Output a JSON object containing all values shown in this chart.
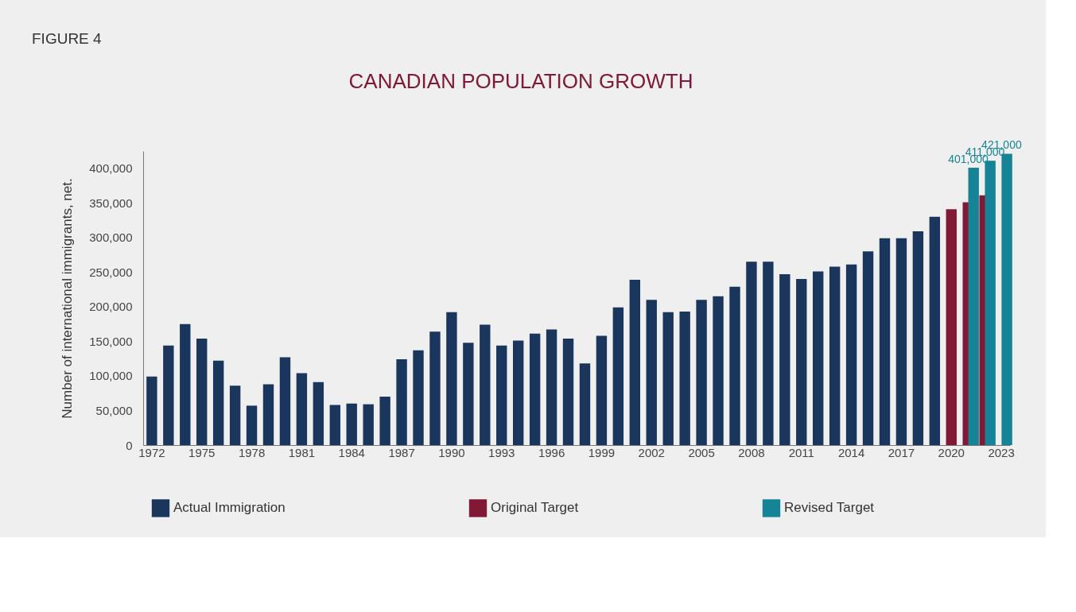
{
  "chart_data": {
    "type": "bar",
    "title": "CANADIAN POPULATION GROWTH",
    "ylabel": "Number of international immigrants, net.",
    "annotations": [
      "FIGURE 4"
    ],
    "categories": [
      "1972",
      null,
      null,
      "1975",
      null,
      null,
      "1978",
      null,
      null,
      "1981",
      null,
      null,
      "1984",
      null,
      null,
      "1987",
      null,
      null,
      "1990",
      null,
      null,
      "1993",
      null,
      null,
      "1996",
      null,
      null,
      "1999",
      null,
      null,
      "2002",
      null,
      null,
      "2005",
      null,
      null,
      "2008",
      null,
      null,
      "2011",
      null,
      null,
      "2014",
      null,
      null,
      "2017",
      null,
      null,
      "2020",
      null,
      null,
      "2023"
    ],
    "series": [
      {
        "name": "Actual Immigration",
        "color": "#1a365d",
        "values": [
          99000,
          144000,
          175000,
          154000,
          122000,
          86000,
          57000,
          88000,
          127000,
          104000,
          91000,
          58000,
          60000,
          59000,
          70000,
          124000,
          137000,
          164000,
          192000,
          148000,
          174000,
          144000,
          151000,
          161000,
          167000,
          154000,
          118000,
          158000,
          199000,
          239000,
          210000,
          192000,
          193000,
          210000,
          215000,
          229000,
          265000,
          265000,
          247000,
          240000,
          251000,
          258000,
          261000,
          280000,
          299000,
          299000,
          309000,
          330000,
          null,
          null,
          null,
          null
        ]
      },
      {
        "name": "Original Target",
        "color": "#801836",
        "values": [
          null,
          null,
          null,
          null,
          null,
          null,
          null,
          null,
          null,
          null,
          null,
          null,
          null,
          null,
          null,
          null,
          null,
          null,
          null,
          null,
          null,
          null,
          null,
          null,
          null,
          null,
          null,
          null,
          null,
          null,
          null,
          null,
          null,
          null,
          null,
          null,
          null,
          null,
          null,
          null,
          null,
          null,
          null,
          null,
          null,
          null,
          null,
          null,
          341000,
          351000,
          361000,
          null
        ]
      },
      {
        "name": "Revised Target",
        "color": "#148496",
        "values": [
          null,
          null,
          null,
          null,
          null,
          null,
          null,
          null,
          null,
          null,
          null,
          null,
          null,
          null,
          null,
          null,
          null,
          null,
          null,
          null,
          null,
          null,
          null,
          null,
          null,
          null,
          null,
          null,
          null,
          null,
          null,
          null,
          null,
          null,
          null,
          null,
          null,
          null,
          null,
          null,
          null,
          null,
          null,
          null,
          null,
          null,
          null,
          null,
          null,
          401000,
          411000,
          421000
        ],
        "value_labels": [
          null,
          null,
          null,
          null,
          null,
          null,
          null,
          null,
          null,
          null,
          null,
          null,
          null,
          null,
          null,
          null,
          null,
          null,
          null,
          null,
          null,
          null,
          null,
          null,
          null,
          null,
          null,
          null,
          null,
          null,
          null,
          null,
          null,
          null,
          null,
          null,
          null,
          null,
          null,
          null,
          null,
          null,
          null,
          null,
          null,
          null,
          null,
          null,
          null,
          "401,000",
          "411,000",
          "421,000"
        ]
      }
    ],
    "ylim": [
      0,
      425000
    ],
    "yticks": [
      0,
      {
        "value": 50000,
        "label": "50,000"
      },
      {
        "value": 100000,
        "label": "100,000"
      },
      {
        "value": 150000,
        "label": "150,000"
      },
      {
        "value": 200000,
        "label": "200,000"
      },
      {
        "value": 250000,
        "label": "250,000"
      },
      {
        "value": 300000,
        "label": "300,000"
      },
      {
        "value": 350000,
        "label": "350,000"
      },
      {
        "value": 400000,
        "label": "400,000"
      }
    ],
    "grid": false,
    "legend": "bottom"
  }
}
